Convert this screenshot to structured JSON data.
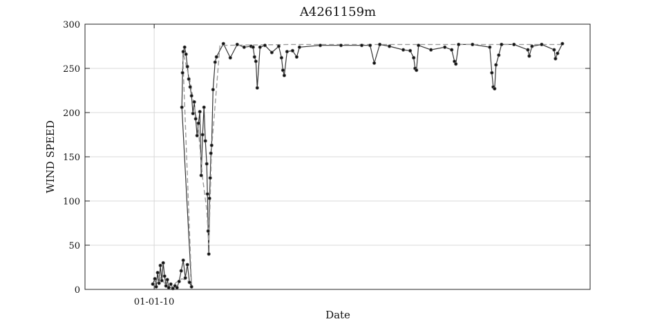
{
  "chart_data": {
    "type": "line",
    "title": "A4261159m",
    "xlabel": "Date",
    "ylabel": "WIND SPEED",
    "x_ticks": [
      {
        "label": "01-01-10",
        "value": 0
      }
    ],
    "xlim": [
      -10,
      63
    ],
    "ylim": [
      0,
      300
    ],
    "y_ticks": [
      0,
      50,
      100,
      150,
      200,
      250,
      300
    ],
    "grid": true,
    "series": [
      {
        "style": "solid",
        "points": [
          [
            -0.2,
            6
          ],
          [
            0.1,
            12
          ],
          [
            0.3,
            3
          ],
          [
            0.5,
            19
          ],
          [
            0.7,
            7
          ],
          [
            0.9,
            27
          ],
          [
            1.1,
            10
          ],
          [
            1.3,
            30
          ],
          [
            1.5,
            15
          ],
          [
            1.7,
            4
          ],
          [
            1.9,
            11
          ],
          [
            2.1,
            2
          ],
          [
            2.4,
            6
          ],
          [
            2.7,
            1
          ],
          [
            3.0,
            4
          ],
          [
            3.3,
            2
          ],
          [
            3.6,
            9
          ],
          [
            3.9,
            21
          ],
          [
            4.2,
            33
          ],
          [
            4.5,
            13
          ],
          [
            4.8,
            28
          ],
          [
            5.1,
            8
          ],
          [
            5.4,
            3
          ],
          [
            4.0,
            206
          ],
          [
            4.1,
            245
          ],
          [
            4.2,
            269
          ],
          [
            4.4,
            274
          ],
          [
            4.6,
            266
          ],
          [
            4.8,
            252
          ],
          [
            5.0,
            238
          ],
          [
            5.2,
            229
          ],
          [
            5.4,
            219
          ],
          [
            5.6,
            199
          ],
          [
            5.8,
            212
          ],
          [
            6.0,
            193
          ],
          [
            6.2,
            174
          ],
          [
            6.4,
            188
          ],
          [
            6.6,
            201
          ],
          [
            6.8,
            129
          ],
          [
            7.0,
            175
          ],
          [
            7.2,
            206
          ],
          [
            7.4,
            168
          ],
          [
            7.6,
            142
          ],
          [
            7.7,
            108
          ],
          [
            7.8,
            66
          ],
          [
            7.9,
            40
          ],
          [
            8.0,
            103
          ],
          [
            8.1,
            126
          ],
          [
            8.2,
            154
          ],
          [
            8.3,
            163
          ],
          [
            8.5,
            226
          ],
          [
            8.8,
            257
          ],
          [
            9.0,
            263
          ],
          [
            10.0,
            278
          ],
          [
            11.0,
            262
          ],
          [
            12.0,
            277
          ],
          [
            13.0,
            274
          ],
          [
            14.0,
            275
          ],
          [
            14.3,
            274
          ],
          [
            14.5,
            263
          ],
          [
            14.7,
            258
          ],
          [
            14.9,
            228
          ],
          [
            15.3,
            274
          ],
          [
            16.0,
            276
          ],
          [
            17.0,
            268
          ],
          [
            18.0,
            275
          ],
          [
            18.4,
            262
          ],
          [
            18.6,
            248
          ],
          [
            18.8,
            242
          ],
          [
            19.2,
            269
          ],
          [
            20.0,
            270
          ],
          [
            20.6,
            263
          ],
          [
            21.0,
            274
          ],
          [
            24.0,
            276
          ],
          [
            27.0,
            276
          ],
          [
            30.0,
            276
          ],
          [
            31.2,
            276
          ],
          [
            31.8,
            256
          ],
          [
            32.6,
            277
          ],
          [
            34.0,
            275
          ],
          [
            36.0,
            271
          ],
          [
            37.0,
            270
          ],
          [
            37.5,
            262
          ],
          [
            37.7,
            250
          ],
          [
            37.9,
            248
          ],
          [
            38.2,
            276
          ],
          [
            40.0,
            271
          ],
          [
            42.0,
            274
          ],
          [
            43.0,
            271
          ],
          [
            43.4,
            258
          ],
          [
            43.6,
            255
          ],
          [
            44.0,
            277
          ],
          [
            46.0,
            277
          ],
          [
            48.5,
            274
          ],
          [
            48.8,
            245
          ],
          [
            49.0,
            229
          ],
          [
            49.2,
            227
          ],
          [
            49.4,
            254
          ],
          [
            49.8,
            265
          ],
          [
            50.2,
            277
          ],
          [
            52.0,
            277
          ],
          [
            54.0,
            271
          ],
          [
            54.2,
            264
          ],
          [
            54.6,
            275
          ],
          [
            56.0,
            277
          ],
          [
            57.8,
            271
          ],
          [
            58.0,
            261
          ],
          [
            58.3,
            267
          ],
          [
            59.0,
            278
          ]
        ]
      },
      {
        "style": "dashed",
        "points": [
          [
            0.0,
            5
          ],
          [
            0.8,
            14
          ],
          [
            1.6,
            6
          ],
          [
            2.4,
            2
          ],
          [
            3.2,
            8
          ],
          [
            4.0,
            12
          ],
          [
            4.8,
            10
          ],
          [
            5.4,
            6
          ],
          [
            4.1,
            270
          ],
          [
            5.2,
            235
          ],
          [
            6.4,
            180
          ],
          [
            7.0,
            126
          ],
          [
            7.6,
            90
          ],
          [
            7.9,
            50
          ],
          [
            8.3,
            160
          ],
          [
            9.5,
            276
          ],
          [
            20.0,
            277
          ],
          [
            59.0,
            277
          ]
        ]
      }
    ]
  }
}
